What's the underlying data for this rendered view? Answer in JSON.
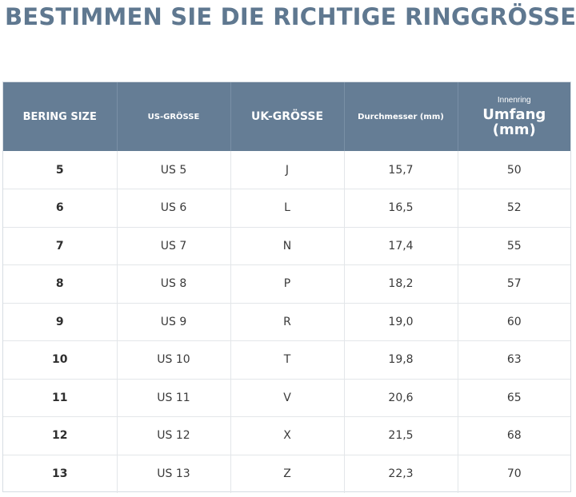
{
  "title": "BESTIMMEN SIE DIE RICHTIGE RINGGRÖSSE II",
  "headers": {
    "bering_size": "BERING SIZE",
    "us_size": "US-GRÖSSE",
    "uk_size": "UK-GRÖSSE",
    "diameter": "Durchmesser (mm)",
    "circumference_top": "Innenring",
    "circumference_main": "Umfang (mm)"
  },
  "rows": [
    {
      "bering": "5",
      "us": "US 5",
      "uk": "J",
      "diameter": "15,7",
      "circumference": "50"
    },
    {
      "bering": "6",
      "us": "US 6",
      "uk": "L",
      "diameter": "16,5",
      "circumference": "52"
    },
    {
      "bering": "7",
      "us": "US 7",
      "uk": "N",
      "diameter": "17,4",
      "circumference": "55"
    },
    {
      "bering": "8",
      "us": "US 8",
      "uk": "P",
      "diameter": "18,2",
      "circumference": "57"
    },
    {
      "bering": "9",
      "us": "US 9",
      "uk": "R",
      "diameter": "19,0",
      "circumference": "60"
    },
    {
      "bering": "10",
      "us": "US 10",
      "uk": "T",
      "diameter": "19,8",
      "circumference": "63"
    },
    {
      "bering": "11",
      "us": "US 11",
      "uk": "V",
      "diameter": "20,6",
      "circumference": "65"
    },
    {
      "bering": "12",
      "us": "US 12",
      "uk": "X",
      "diameter": "21,5",
      "circumference": "68"
    },
    {
      "bering": "13",
      "us": "US 13",
      "uk": "Z",
      "diameter": "22,3",
      "circumference": "70"
    }
  ],
  "colors": {
    "title": "#5f7890",
    "header_bg": "#657d95"
  }
}
